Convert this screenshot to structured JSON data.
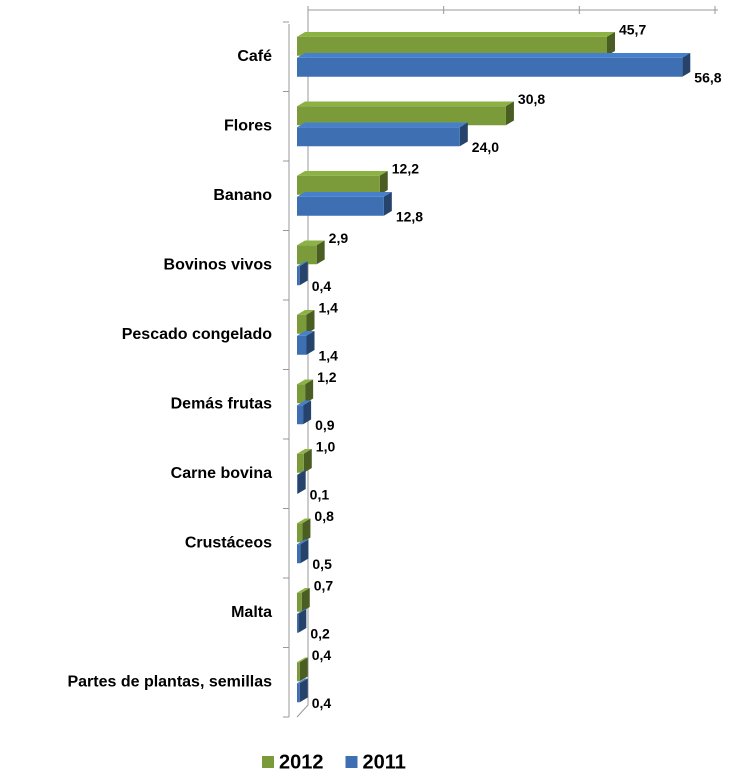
{
  "chart_data": {
    "type": "bar",
    "orientation": "horizontal",
    "categories": [
      "Café",
      "Flores",
      "Banano",
      "Bovinos vivos",
      "Pescado congelado",
      "Demás frutas",
      "Carne bovina",
      "Crustáceos",
      "Malta",
      "Partes de plantas, semillas"
    ],
    "series": [
      {
        "name": "2012",
        "color": "#7b9b3b",
        "values": [
          45.7,
          30.8,
          12.2,
          2.9,
          1.4,
          1.2,
          1.0,
          0.8,
          0.7,
          0.4
        ],
        "value_labels": [
          "45,7",
          "30,8",
          "12,2",
          "2,9",
          "1,4",
          "1,2",
          "1,0",
          "0,8",
          "0,7",
          "0,4"
        ]
      },
      {
        "name": "2011",
        "color": "#3d6fb2",
        "values": [
          56.8,
          24.0,
          12.8,
          0.4,
          1.4,
          0.9,
          0.1,
          0.5,
          0.2,
          0.4
        ],
        "value_labels": [
          "56,8",
          "24,0",
          "12,8",
          "0,4",
          "1,4",
          "0,9",
          "0,1",
          "0,5",
          "0,2",
          "0,4"
        ]
      }
    ],
    "xlim": [
      0,
      60
    ],
    "xticks": [
      0,
      20,
      40,
      60
    ],
    "legend": "bottom"
  }
}
